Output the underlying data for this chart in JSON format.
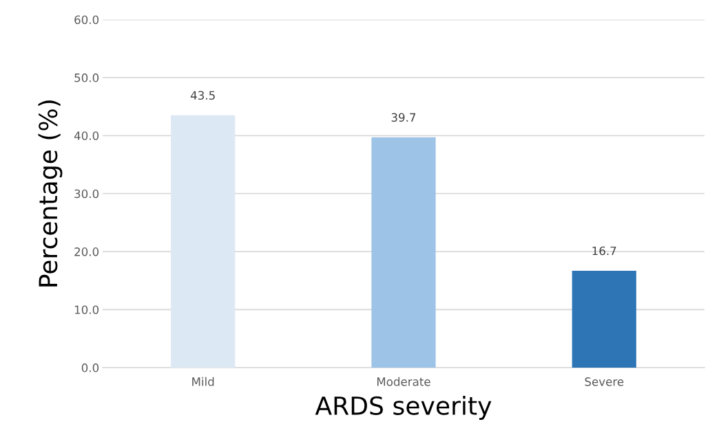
{
  "chart_data": {
    "type": "bar",
    "xlabel": "ARDS severity",
    "ylabel": "Percentage (%)",
    "categories": [
      "Mild",
      "Moderate",
      "Severe"
    ],
    "values": [
      43.5,
      39.7,
      16.7
    ],
    "colors": [
      "#dde8f5",
      "#9dc3e6",
      "#2e75b6"
    ],
    "ylim": [
      0,
      60
    ],
    "yticks": [
      {
        "value": 0,
        "label": "0.0"
      },
      {
        "value": 10,
        "label": "10.0"
      },
      {
        "value": 20,
        "label": "20.0"
      },
      {
        "value": 30,
        "label": "30.0"
      },
      {
        "value": 40,
        "label": "40.0"
      },
      {
        "value": 50,
        "label": "50.0"
      },
      {
        "value": 60,
        "label": "60.0"
      }
    ],
    "grid": "y",
    "data_labels": true
  }
}
